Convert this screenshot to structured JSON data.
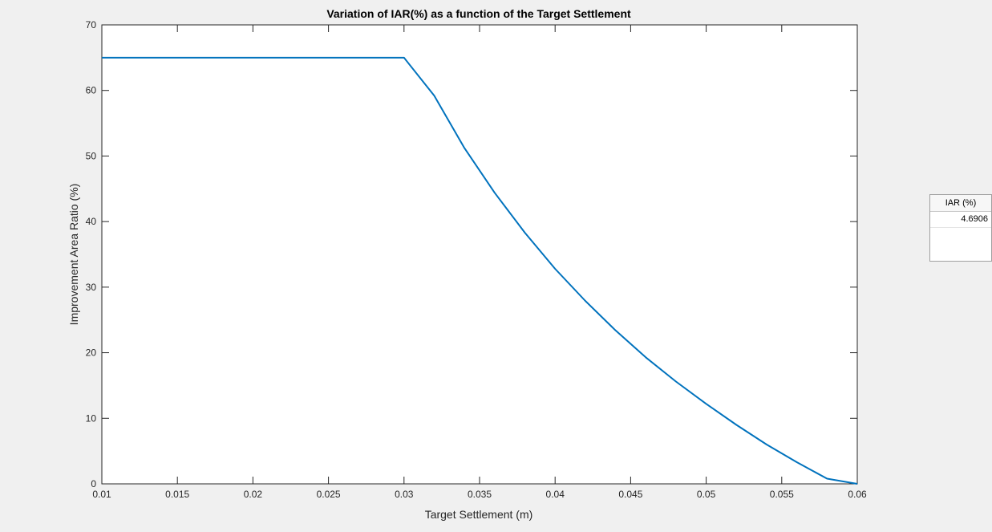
{
  "chart_data": {
    "type": "line",
    "title": "Variation of IAR(%) as a function of the Target Settlement",
    "xlabel": "Target Settlement (m)",
    "ylabel": "Improvement Area Ratio (%)",
    "xlim": [
      0.01,
      0.06
    ],
    "ylim": [
      0,
      70
    ],
    "xticks": [
      0.01,
      0.015,
      0.02,
      0.025,
      0.03,
      0.035,
      0.04,
      0.045,
      0.05,
      0.055,
      0.06
    ],
    "xtick_labels": [
      "0.01",
      "0.015",
      "0.02",
      "0.025",
      "0.03",
      "0.035",
      "0.04",
      "0.045",
      "0.05",
      "0.055",
      "0.06"
    ],
    "yticks": [
      0,
      10,
      20,
      30,
      40,
      50,
      60,
      70
    ],
    "ytick_labels": [
      "0",
      "10",
      "20",
      "30",
      "40",
      "50",
      "60",
      "70"
    ],
    "grid": false,
    "line_color": "#0072bd",
    "series": [
      {
        "x": [
          0.01,
          0.012,
          0.014,
          0.016,
          0.018,
          0.02,
          0.022,
          0.024,
          0.026,
          0.028,
          0.03,
          0.032,
          0.034,
          0.036,
          0.038,
          0.04,
          0.042,
          0.044,
          0.046,
          0.048,
          0.05,
          0.052,
          0.054,
          0.056,
          0.058,
          0.06
        ],
        "y": [
          65,
          65,
          65,
          65,
          65,
          65,
          65,
          65,
          65,
          65,
          65,
          59.2,
          51.2,
          44.4,
          38.3,
          32.8,
          27.9,
          23.4,
          19.3,
          15.6,
          12.2,
          9.0,
          6.0,
          3.3,
          0.8,
          0
        ]
      }
    ]
  },
  "result_table": {
    "header": "IAR (%)",
    "value": "4.6906"
  }
}
